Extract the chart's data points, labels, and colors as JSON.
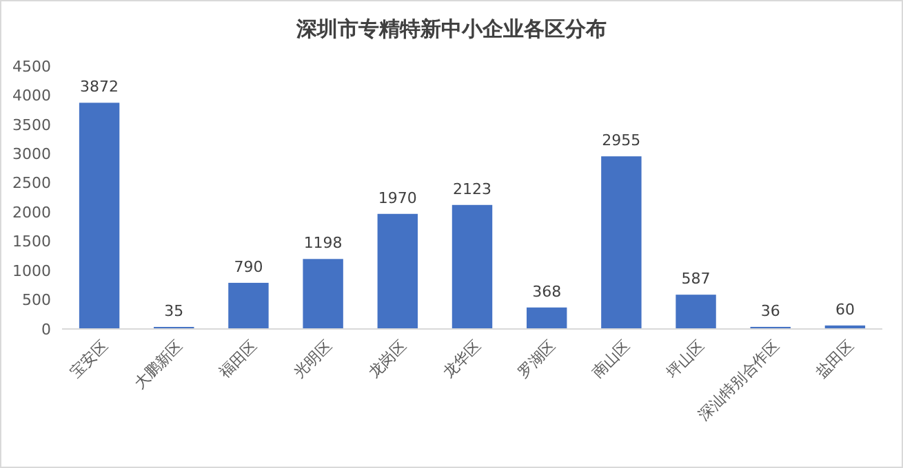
{
  "chart_data": {
    "type": "bar",
    "title": "深圳市专精特新中小企业各区分布",
    "categories": [
      "宝安区",
      "大鹏新区",
      "福田区",
      "光明区",
      "龙岗区",
      "龙华区",
      "罗湖区",
      "南山区",
      "坪山区",
      "深汕特别合作区",
      "盐田区"
    ],
    "values": [
      3872,
      35,
      790,
      1198,
      1970,
      2123,
      368,
      2955,
      587,
      36,
      60
    ],
    "color": "#4472c4",
    "ylim": [
      0,
      4500
    ],
    "yticks": [
      0,
      500,
      1000,
      1500,
      2000,
      2500,
      3000,
      3500,
      4000,
      4500
    ],
    "grid": false,
    "data_labels": true
  }
}
